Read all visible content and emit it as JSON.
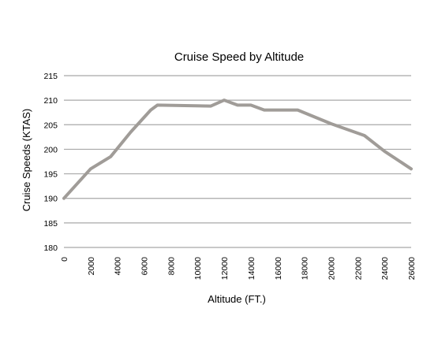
{
  "chart_data": {
    "type": "line",
    "title": "Cruise Speed by Altitude",
    "xlabel": "Altitude (FT.)",
    "ylabel": "Cruise Speeds (KTAS)",
    "xlim": [
      0,
      26000
    ],
    "ylim": [
      180,
      215
    ],
    "x_ticks": [
      0,
      2000,
      4000,
      6000,
      8000,
      10000,
      12000,
      14000,
      16000,
      18000,
      20000,
      22000,
      24000,
      26000
    ],
    "y_ticks": [
      180,
      185,
      190,
      195,
      200,
      205,
      210,
      215
    ],
    "grid": true,
    "series": [
      {
        "color": "#a09c98",
        "x": [
          0,
          2000,
          3500,
          5000,
          6500,
          7000,
          11000,
          12000,
          13000,
          14000,
          15000,
          17500,
          20000,
          22500,
          24000,
          26000
        ],
        "y": [
          190,
          196,
          198.5,
          203.5,
          208,
          209,
          208.8,
          210,
          209,
          209,
          208,
          208,
          205.2,
          202.8,
          199.6,
          196
        ]
      }
    ]
  }
}
